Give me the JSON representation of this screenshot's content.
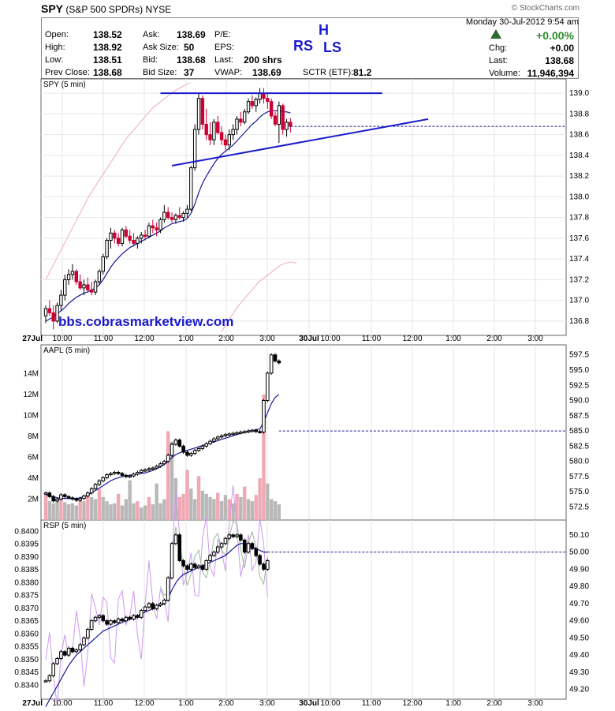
{
  "header": {
    "symbol": "SPY",
    "name": "(S&P 500 SPDRs)",
    "exchange": "NYSE",
    "copyright": "© StockCharts.com",
    "datetime": "Monday 30-Jul-2012 9:54 am",
    "open_label": "Open:",
    "open": "138.52",
    "high_label": "High:",
    "high": "138.92",
    "low_label": "Low:",
    "low": "138.51",
    "prev_label": "Prev Close:",
    "prev": "138.68",
    "ask_label": "Ask:",
    "ask": "138.69",
    "asksize_label": "Ask Size:",
    "asksize": "50",
    "bid_label": "Bid:",
    "bid": "138.68",
    "bidsize_label": "Bid Size:",
    "bidsize": "37",
    "pe_label": "P/E:",
    "eps_label": "EPS:",
    "last_label": "Last:",
    "last_shares": "200 shrs",
    "vwap_label": "VWAP:",
    "vwap": "138.69",
    "sctr_label": "SCTR (ETF):",
    "sctr": "81.2",
    "pct_change": "+0.00%",
    "chg_label": "Chg:",
    "chg": "+0.00",
    "last2_label": "Last:",
    "last2": "138.68",
    "volume_label": "Volume:",
    "volume": "11,946,394"
  },
  "annotations": {
    "rs": "RS",
    "h": "H",
    "ls": "LS",
    "watermark": "bbs.cobrasmarketview.com"
  },
  "colors": {
    "up": "#000000",
    "down": "#cc0033",
    "ma": "#1a1a99",
    "trend": "#1a1acc",
    "pink": "#f2b8c2",
    "vol_gray": "#b8b8b8",
    "vol_pink": "#f0a8b4",
    "violet": "#cc99ee",
    "green": "#99bb99"
  },
  "chart_data": [
    {
      "type": "candlestick",
      "title": "SPY (5 min)",
      "x_ticks": [
        "27Jul",
        "10:00",
        "11:00",
        "12:00",
        "1:00",
        "2:00",
        "3:00",
        "30Jul",
        "10:00",
        "11:00",
        "12:00",
        "1:00",
        "2:00",
        "3:00"
      ],
      "y_ticks": [
        136.8,
        137.0,
        137.2,
        137.4,
        137.6,
        137.8,
        138.0,
        138.2,
        138.4,
        138.6,
        138.8,
        139.0
      ],
      "ylim": [
        136.7,
        139.1
      ],
      "ohlc": [
        [
          136.85,
          136.95,
          136.78,
          136.92
        ],
        [
          136.92,
          137.0,
          136.85,
          136.88
        ],
        [
          136.88,
          136.95,
          136.72,
          136.8
        ],
        [
          136.8,
          136.98,
          136.78,
          136.95
        ],
        [
          136.95,
          137.1,
          136.9,
          137.05
        ],
        [
          137.05,
          137.25,
          137.0,
          137.2
        ],
        [
          137.2,
          137.3,
          137.15,
          137.25
        ],
        [
          137.25,
          137.35,
          137.2,
          137.28
        ],
        [
          137.28,
          137.3,
          137.15,
          137.18
        ],
        [
          137.18,
          137.25,
          137.1,
          137.12
        ],
        [
          137.12,
          137.2,
          137.05,
          137.15
        ],
        [
          137.15,
          137.22,
          137.08,
          137.1
        ],
        [
          137.1,
          137.18,
          137.05,
          137.08
        ],
        [
          137.08,
          137.2,
          137.05,
          137.18
        ],
        [
          137.18,
          137.3,
          137.15,
          137.28
        ],
        [
          137.28,
          137.45,
          137.25,
          137.42
        ],
        [
          137.42,
          137.6,
          137.4,
          137.58
        ],
        [
          137.58,
          137.7,
          137.5,
          137.65
        ],
        [
          137.65,
          137.68,
          137.55,
          137.6
        ],
        [
          137.6,
          137.65,
          137.52,
          137.55
        ],
        [
          137.55,
          137.7,
          137.52,
          137.68
        ],
        [
          137.68,
          137.72,
          137.6,
          137.62
        ],
        [
          137.62,
          137.68,
          137.55,
          137.58
        ],
        [
          137.58,
          137.65,
          137.52,
          137.55
        ],
        [
          137.55,
          137.62,
          137.5,
          137.6
        ],
        [
          137.6,
          137.66,
          137.55,
          137.63
        ],
        [
          137.63,
          137.68,
          137.58,
          137.62
        ],
        [
          137.62,
          137.75,
          137.6,
          137.72
        ],
        [
          137.72,
          137.78,
          137.65,
          137.7
        ],
        [
          137.7,
          137.75,
          137.62,
          137.68
        ],
        [
          137.68,
          137.8,
          137.65,
          137.78
        ],
        [
          137.78,
          137.92,
          137.75,
          137.85
        ],
        [
          137.85,
          137.9,
          137.78,
          137.8
        ],
        [
          137.8,
          137.85,
          137.75,
          137.78
        ],
        [
          137.78,
          137.84,
          137.74,
          137.82
        ],
        [
          137.82,
          137.9,
          137.78,
          137.8
        ],
        [
          137.8,
          137.86,
          137.76,
          137.84
        ],
        [
          137.84,
          137.92,
          137.8,
          137.88
        ],
        [
          137.88,
          138.3,
          137.86,
          138.28
        ],
        [
          138.28,
          138.7,
          138.25,
          138.65
        ],
        [
          138.65,
          139.0,
          138.6,
          138.95
        ],
        [
          138.95,
          138.98,
          138.65,
          138.7
        ],
        [
          138.7,
          138.85,
          138.55,
          138.6
        ],
        [
          138.6,
          138.72,
          138.5,
          138.55
        ],
        [
          138.55,
          138.75,
          138.5,
          138.72
        ],
        [
          138.72,
          138.78,
          138.6,
          138.62
        ],
        [
          138.62,
          138.68,
          138.5,
          138.55
        ],
        [
          138.55,
          138.6,
          138.45,
          138.5
        ],
        [
          138.5,
          138.65,
          138.45,
          138.6
        ],
        [
          138.6,
          138.7,
          138.55,
          138.65
        ],
        [
          138.65,
          138.78,
          138.6,
          138.75
        ],
        [
          138.75,
          138.82,
          138.68,
          138.72
        ],
        [
          138.72,
          138.85,
          138.7,
          138.82
        ],
        [
          138.82,
          138.95,
          138.8,
          138.92
        ],
        [
          138.92,
          138.98,
          138.85,
          138.88
        ],
        [
          138.88,
          138.96,
          138.82,
          138.94
        ],
        [
          138.94,
          139.05,
          138.9,
          139.0
        ],
        [
          139.0,
          139.05,
          138.9,
          138.95
        ],
        [
          138.95,
          139.0,
          138.85,
          138.92
        ],
        [
          138.92,
          138.95,
          138.75,
          138.78
        ],
        [
          138.78,
          138.82,
          138.68,
          138.7
        ],
        [
          138.7,
          138.92,
          138.52,
          138.88
        ],
        [
          138.88,
          138.9,
          138.6,
          138.65
        ],
        [
          138.65,
          138.75,
          138.58,
          138.72
        ],
        [
          138.72,
          138.76,
          138.62,
          138.68
        ]
      ],
      "ma_line": [
        136.8,
        136.82,
        136.84,
        136.87,
        136.9,
        136.93,
        136.97,
        137.0,
        137.03,
        137.05,
        137.07,
        137.08,
        137.1,
        137.12,
        137.15,
        137.2,
        137.26,
        137.32,
        137.37,
        137.41,
        137.45,
        137.48,
        137.51,
        137.53,
        137.55,
        137.57,
        137.59,
        137.61,
        137.63,
        137.65,
        137.67,
        137.7,
        137.72,
        137.74,
        137.75,
        137.76,
        137.77,
        137.79,
        137.84,
        137.93,
        138.04,
        138.13,
        138.2,
        138.26,
        138.32,
        138.37,
        138.41,
        138.44,
        138.47,
        138.5,
        138.54,
        138.58,
        138.62,
        138.66,
        138.7,
        138.73,
        138.77,
        138.8,
        138.82,
        138.83,
        138.83,
        138.83,
        138.82,
        138.82,
        138.81
      ],
      "pink_band": [
        137.2,
        137.3,
        137.4,
        137.5,
        137.6,
        137.7,
        137.8,
        137.9,
        138.0,
        138.08,
        138.16,
        138.24,
        138.32,
        138.4,
        138.48,
        138.56,
        138.62,
        138.68,
        138.74,
        138.8,
        138.86,
        138.9,
        138.94,
        138.98,
        139.02,
        139.05,
        139.08,
        139.1
      ],
      "pink_band_lower": [
        136.7,
        136.78,
        136.86,
        136.94,
        137.0,
        137.06,
        137.12,
        137.18,
        137.22,
        137.26,
        137.3,
        137.34,
        137.36,
        137.37,
        137.36
      ],
      "ref_level": 138.68,
      "trendlines": [
        {
          "from": [
            30,
            139.0
          ],
          "to": [
            88,
            139.0
          ]
        },
        {
          "from": [
            33,
            138.3
          ],
          "to": [
            100,
            138.75
          ]
        }
      ]
    },
    {
      "type": "candlestick",
      "title": "AAPL (5 min)",
      "y_ticks": [
        572.5,
        575.0,
        577.5,
        580.0,
        582.5,
        585.0,
        587.5,
        590.0,
        592.5,
        595.0,
        597.5
      ],
      "ylim": [
        571.0,
        598.5
      ],
      "volume_ticks": [
        "2M",
        "4M",
        "6M",
        "8M",
        "10M",
        "12M",
        "14M"
      ],
      "volume_ylim": [
        0,
        16
      ],
      "closes": [
        574.8,
        574.2,
        573.5,
        573.8,
        574.5,
        574.2,
        574.0,
        573.8,
        573.6,
        573.9,
        574.3,
        574.8,
        575.5,
        576.2,
        576.8,
        577.3,
        577.8,
        578.0,
        578.2,
        578.0,
        577.7,
        577.5,
        577.6,
        577.9,
        578.2,
        578.5,
        578.6,
        578.8,
        578.9,
        579.2,
        579.6,
        580.0,
        581.0,
        582.8,
        583.5,
        582.5,
        581.5,
        581.0,
        581.3,
        581.8,
        582.1,
        582.5,
        582.9,
        583.3,
        583.7,
        584.0,
        584.2,
        584.4,
        584.5,
        584.6,
        584.7,
        584.8,
        584.9,
        585.0,
        585.1,
        584.9,
        584.8,
        590.0,
        594.5,
        597.5,
        596.5,
        596.2
      ],
      "ma_line": [
        574.5,
        574.4,
        574.2,
        574.0,
        573.9,
        573.9,
        573.9,
        573.9,
        573.9,
        574.0,
        574.2,
        574.5,
        574.8,
        575.2,
        575.6,
        576.0,
        576.4,
        576.8,
        577.1,
        577.3,
        577.5,
        577.6,
        577.7,
        577.8,
        577.9,
        578.0,
        578.1,
        578.3,
        578.5,
        578.8,
        579.1,
        579.5,
        580.0,
        580.6,
        581.1,
        581.4,
        581.6,
        581.8,
        582.0,
        582.2,
        582.4,
        582.6,
        582.8,
        583.0,
        583.2,
        583.4,
        583.6,
        583.8,
        584.0,
        584.2,
        584.4,
        584.6,
        584.8,
        585.0,
        585.1,
        585.2,
        585.3,
        586.5,
        588.0,
        589.5,
        590.5,
        591.0
      ],
      "ref_level": 585.0,
      "volumes": [
        2.4,
        1.8,
        1.6,
        1.9,
        2.2,
        1.7,
        1.5,
        1.6,
        1.4,
        2.0,
        1.8,
        2.5,
        2.2,
        2.0,
        3.0,
        2.2,
        1.8,
        1.5,
        1.6,
        2.5,
        1.4,
        2.0,
        3.8,
        1.6,
        1.8,
        1.2,
        1.4,
        2.2,
        1.5,
        3.5,
        1.6,
        2.0,
        8.5,
        7.5,
        4.0,
        2.2,
        2.5,
        4.8,
        3.0,
        2.0,
        4.2,
        2.8,
        2.5,
        2.2,
        2.0,
        2.6,
        1.8,
        2.4,
        2.0,
        1.6,
        2.5,
        2.2,
        3.2,
        2.0,
        1.8,
        2.4,
        4.0,
        12.0,
        3.5,
        2.0,
        1.8,
        1.5
      ],
      "volume_down": [
        1,
        0,
        0,
        0,
        1,
        0,
        0,
        0,
        0,
        1,
        0,
        1,
        0,
        0,
        1,
        0,
        0,
        0,
        0,
        1,
        0,
        0,
        0,
        0,
        1,
        0,
        0,
        1,
        0,
        0,
        0,
        0,
        1,
        0,
        0,
        1,
        1,
        1,
        0,
        0,
        1,
        0,
        0,
        0,
        0,
        1,
        0,
        0,
        1,
        0,
        1,
        0,
        1,
        0,
        0,
        1,
        1,
        1,
        0,
        0,
        0,
        0
      ]
    },
    {
      "type": "candlestick",
      "title": "RSP (5 min)",
      "y_ticks_left": [
        0.834,
        0.8345,
        0.835,
        0.8355,
        0.836,
        0.8365,
        0.837,
        0.8375,
        0.838,
        0.8385,
        0.839,
        0.8395,
        0.84
      ],
      "ylim_left": [
        0.8337,
        0.8402
      ],
      "y_ticks_right": [
        49.2,
        49.3,
        49.4,
        49.5,
        49.6,
        49.7,
        49.8,
        49.9,
        50.0,
        50.1
      ],
      "ylim_right": [
        49.18,
        50.15
      ],
      "closes": [
        49.25,
        49.28,
        49.35,
        49.38,
        49.42,
        49.4,
        49.44,
        49.42,
        49.43,
        49.46,
        49.5,
        49.55,
        49.6,
        49.62,
        49.63,
        49.6,
        49.58,
        49.6,
        49.59,
        49.61,
        49.6,
        49.62,
        49.61,
        49.63,
        49.62,
        49.66,
        49.68,
        49.7,
        49.67,
        49.69,
        49.7,
        49.72,
        49.85,
        50.05,
        50.1,
        49.95,
        49.92,
        49.9,
        49.93,
        49.91,
        49.92,
        49.9,
        49.95,
        49.98,
        50.0,
        50.03,
        50.05,
        50.08,
        50.1,
        50.09,
        50.1,
        50.07,
        50.0,
        50.05,
        50.02,
        49.98,
        49.93,
        49.9,
        49.95
      ],
      "ma_line": [
        49.1,
        49.14,
        49.18,
        49.22,
        49.26,
        49.3,
        49.34,
        49.37,
        49.4,
        49.42,
        49.44,
        49.46,
        49.48,
        49.5,
        49.52,
        49.54,
        49.55,
        49.56,
        49.57,
        49.58,
        49.59,
        49.6,
        49.61,
        49.62,
        49.63,
        49.64,
        49.65,
        49.66,
        49.67,
        49.68,
        49.69,
        49.7,
        49.73,
        49.78,
        49.82,
        49.85,
        49.87,
        49.88,
        49.89,
        49.9,
        49.91,
        49.92,
        49.93,
        49.94,
        49.95,
        49.96,
        49.97,
        49.98,
        50.0,
        50.02,
        50.04,
        50.05,
        50.05,
        50.04,
        50.03,
        50.02,
        50.01,
        50.0,
        50.0
      ],
      "ref_level": 50.0
    }
  ]
}
